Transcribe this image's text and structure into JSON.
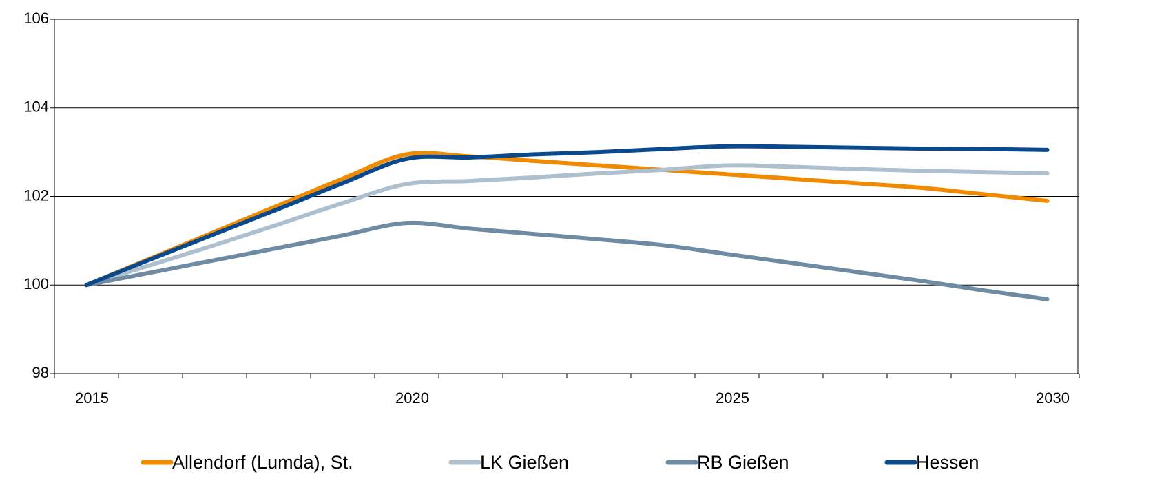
{
  "chart_data": {
    "type": "line",
    "categories": [
      "2015",
      null,
      null,
      null,
      null,
      "2020",
      null,
      null,
      null,
      null,
      "2025",
      null,
      null,
      null,
      null,
      "2030"
    ],
    "series": [
      {
        "name": "Allendorf (Lumda), St.",
        "color": "#f08a00",
        "values": [
          100,
          100.6,
          101.2,
          101.8,
          102.4,
          102.95,
          102.9,
          102.8,
          102.7,
          102.6,
          102.5,
          102.4,
          102.3,
          102.2,
          102.05,
          101.9
        ]
      },
      {
        "name": "LK Gießen",
        "color": "#aebfce",
        "values": [
          100,
          100.45,
          100.9,
          101.37,
          101.85,
          102.28,
          102.35,
          102.43,
          102.52,
          102.6,
          102.7,
          102.67,
          102.62,
          102.58,
          102.55,
          102.52
        ]
      },
      {
        "name": "RB Gießen",
        "color": "#6e8ba3",
        "values": [
          100,
          100.28,
          100.56,
          100.84,
          101.12,
          101.4,
          101.27,
          101.15,
          101.03,
          100.9,
          100.7,
          100.5,
          100.3,
          100.1,
          99.88,
          99.68
        ]
      },
      {
        "name": "Hessen",
        "color": "#0a4a8c",
        "values": [
          100,
          100.58,
          101.15,
          101.72,
          102.3,
          102.85,
          102.88,
          102.95,
          103.0,
          103.07,
          103.13,
          103.12,
          103.1,
          103.08,
          103.07,
          103.05
        ]
      }
    ],
    "ylim": [
      98,
      106
    ],
    "yticks": [
      98,
      100,
      102,
      104,
      106
    ],
    "grid": true,
    "legend": "bottom"
  }
}
